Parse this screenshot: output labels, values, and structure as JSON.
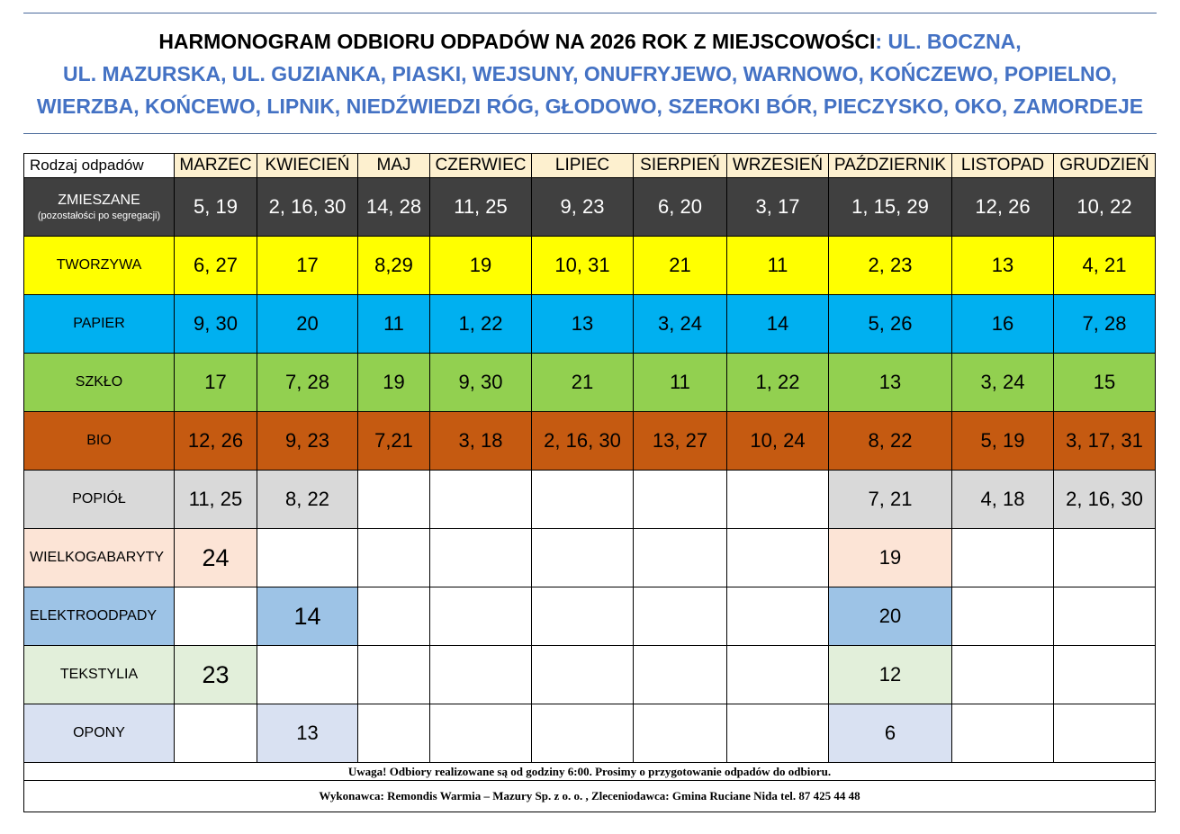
{
  "title": {
    "black": "HARMONOGRAM ODBIORU ODPADÓW NA 2026 ROK Z MIEJSCOWOŚCI",
    "line1_blue": ": UL. BOCZNA,",
    "line2": "UL. MAZURSKA, UL. GUZIANKA, PIASKI, WEJSUNY, ONUFRYJEWO, WARNOWO, KOŃCZEWO, POPIELNO,",
    "line3": "WIERZBA, KOŃCEWO, LIPNIK, NIEDŹWIEDZI RÓG, GŁODOWO, SZEROKI BÓR, PIECZYSKO, OKO, ZAMORDEJE"
  },
  "table": {
    "first_header": "Rodzaj odpadów",
    "months": [
      "MARZEC",
      "KWIECIEŃ",
      "MAJ",
      "CZERWIEC",
      "LIPIEC",
      "SIERPIEŃ",
      "WRZESIEŃ",
      "PAŹDZIERNIK",
      "LISTOPAD",
      "GRUDZIEŃ"
    ],
    "rows": [
      {
        "label": "ZMIESZANE",
        "sublabel": "(pozostałości po segregacji)",
        "color": "#404040",
        "text_color": "#ffffff",
        "label_color": "#404040",
        "values": [
          "5, 19",
          "2, 16, 30",
          "14, 28",
          "11, 25",
          "9, 23",
          "6, 20",
          "3, 17",
          "1, 15, 29",
          "12, 26",
          "10, 22"
        ]
      },
      {
        "label": "TWORZYWA",
        "color": "#ffff00",
        "text_color": "#000000",
        "label_color": "#ffff00",
        "values": [
          "6, 27",
          "17",
          "8,29",
          "19",
          "10, 31",
          "21",
          "11",
          "2, 23",
          "13",
          "4, 21"
        ]
      },
      {
        "label": "PAPIER",
        "color": "#00b0f0",
        "text_color": "#000000",
        "label_color": "#00b0f0",
        "values": [
          "9, 30",
          "20",
          "11",
          "1, 22",
          "13",
          "3, 24",
          "14",
          "5, 26",
          "16",
          "7, 28"
        ]
      },
      {
        "label": "SZKŁO",
        "color": "#92d050",
        "text_color": "#000000",
        "label_color": "#92d050",
        "values": [
          "17",
          "7, 28",
          "19",
          "9, 30",
          "21",
          "11",
          "1, 22",
          "13",
          "3, 24",
          "15"
        ]
      },
      {
        "label": "BIO",
        "color": "#c55a11",
        "text_color": "#000000",
        "label_color": "#c55a11",
        "values": [
          "12, 26",
          "9, 23",
          "7,21",
          "3, 18",
          "2, 16, 30",
          "13, 27",
          "10, 24",
          "8, 22",
          "5, 19",
          "3, 17, 31"
        ]
      },
      {
        "label": "POPIÓŁ",
        "color": "#d9d9d9",
        "text_color": "#000000",
        "label_color": "#d9d9d9",
        "values": [
          "11, 25",
          "8, 22",
          "",
          "",
          "",
          "",
          "",
          "7, 21",
          "4, 18",
          "2, 16, 30"
        ]
      },
      {
        "label": "WIELKOGABARYTY",
        "color": "#fce4d6",
        "text_color": "#000000",
        "label_color": "#fce4d6",
        "values": [
          "24",
          "",
          "",
          "",
          "",
          "",
          "",
          "19",
          "",
          ""
        ]
      },
      {
        "label": "ELEKTROODPADY",
        "color": "#9dc3e6",
        "text_color": "#000000",
        "label_color": "#9dc3e6",
        "values": [
          "",
          "14",
          "",
          "",
          "",
          "",
          "",
          "20",
          "",
          ""
        ]
      },
      {
        "label": "TEKSTYLIA",
        "color": "#e2efda",
        "text_color": "#000000",
        "label_color": "#e2efda",
        "values": [
          "23",
          "",
          "",
          "",
          "",
          "",
          "",
          "12",
          "",
          ""
        ]
      },
      {
        "label": "OPONY",
        "color": "#d9e1f2",
        "text_color": "#000000",
        "label_color": "#d9e1f2",
        "values": [
          "",
          "13",
          "",
          "",
          "",
          "",
          "",
          "6",
          "",
          ""
        ]
      }
    ]
  },
  "footer": {
    "note": "Uwaga! Odbiory realizowane są od godziny 6:00. Prosimy o przygotowanie odpadów do odbioru.",
    "contractor": "Wykonawca: Remondis Warmia – Mazury Sp. z o. o. , Zleceniodawca: Gmina Ruciane Nida tel. 87 425 44 48"
  }
}
